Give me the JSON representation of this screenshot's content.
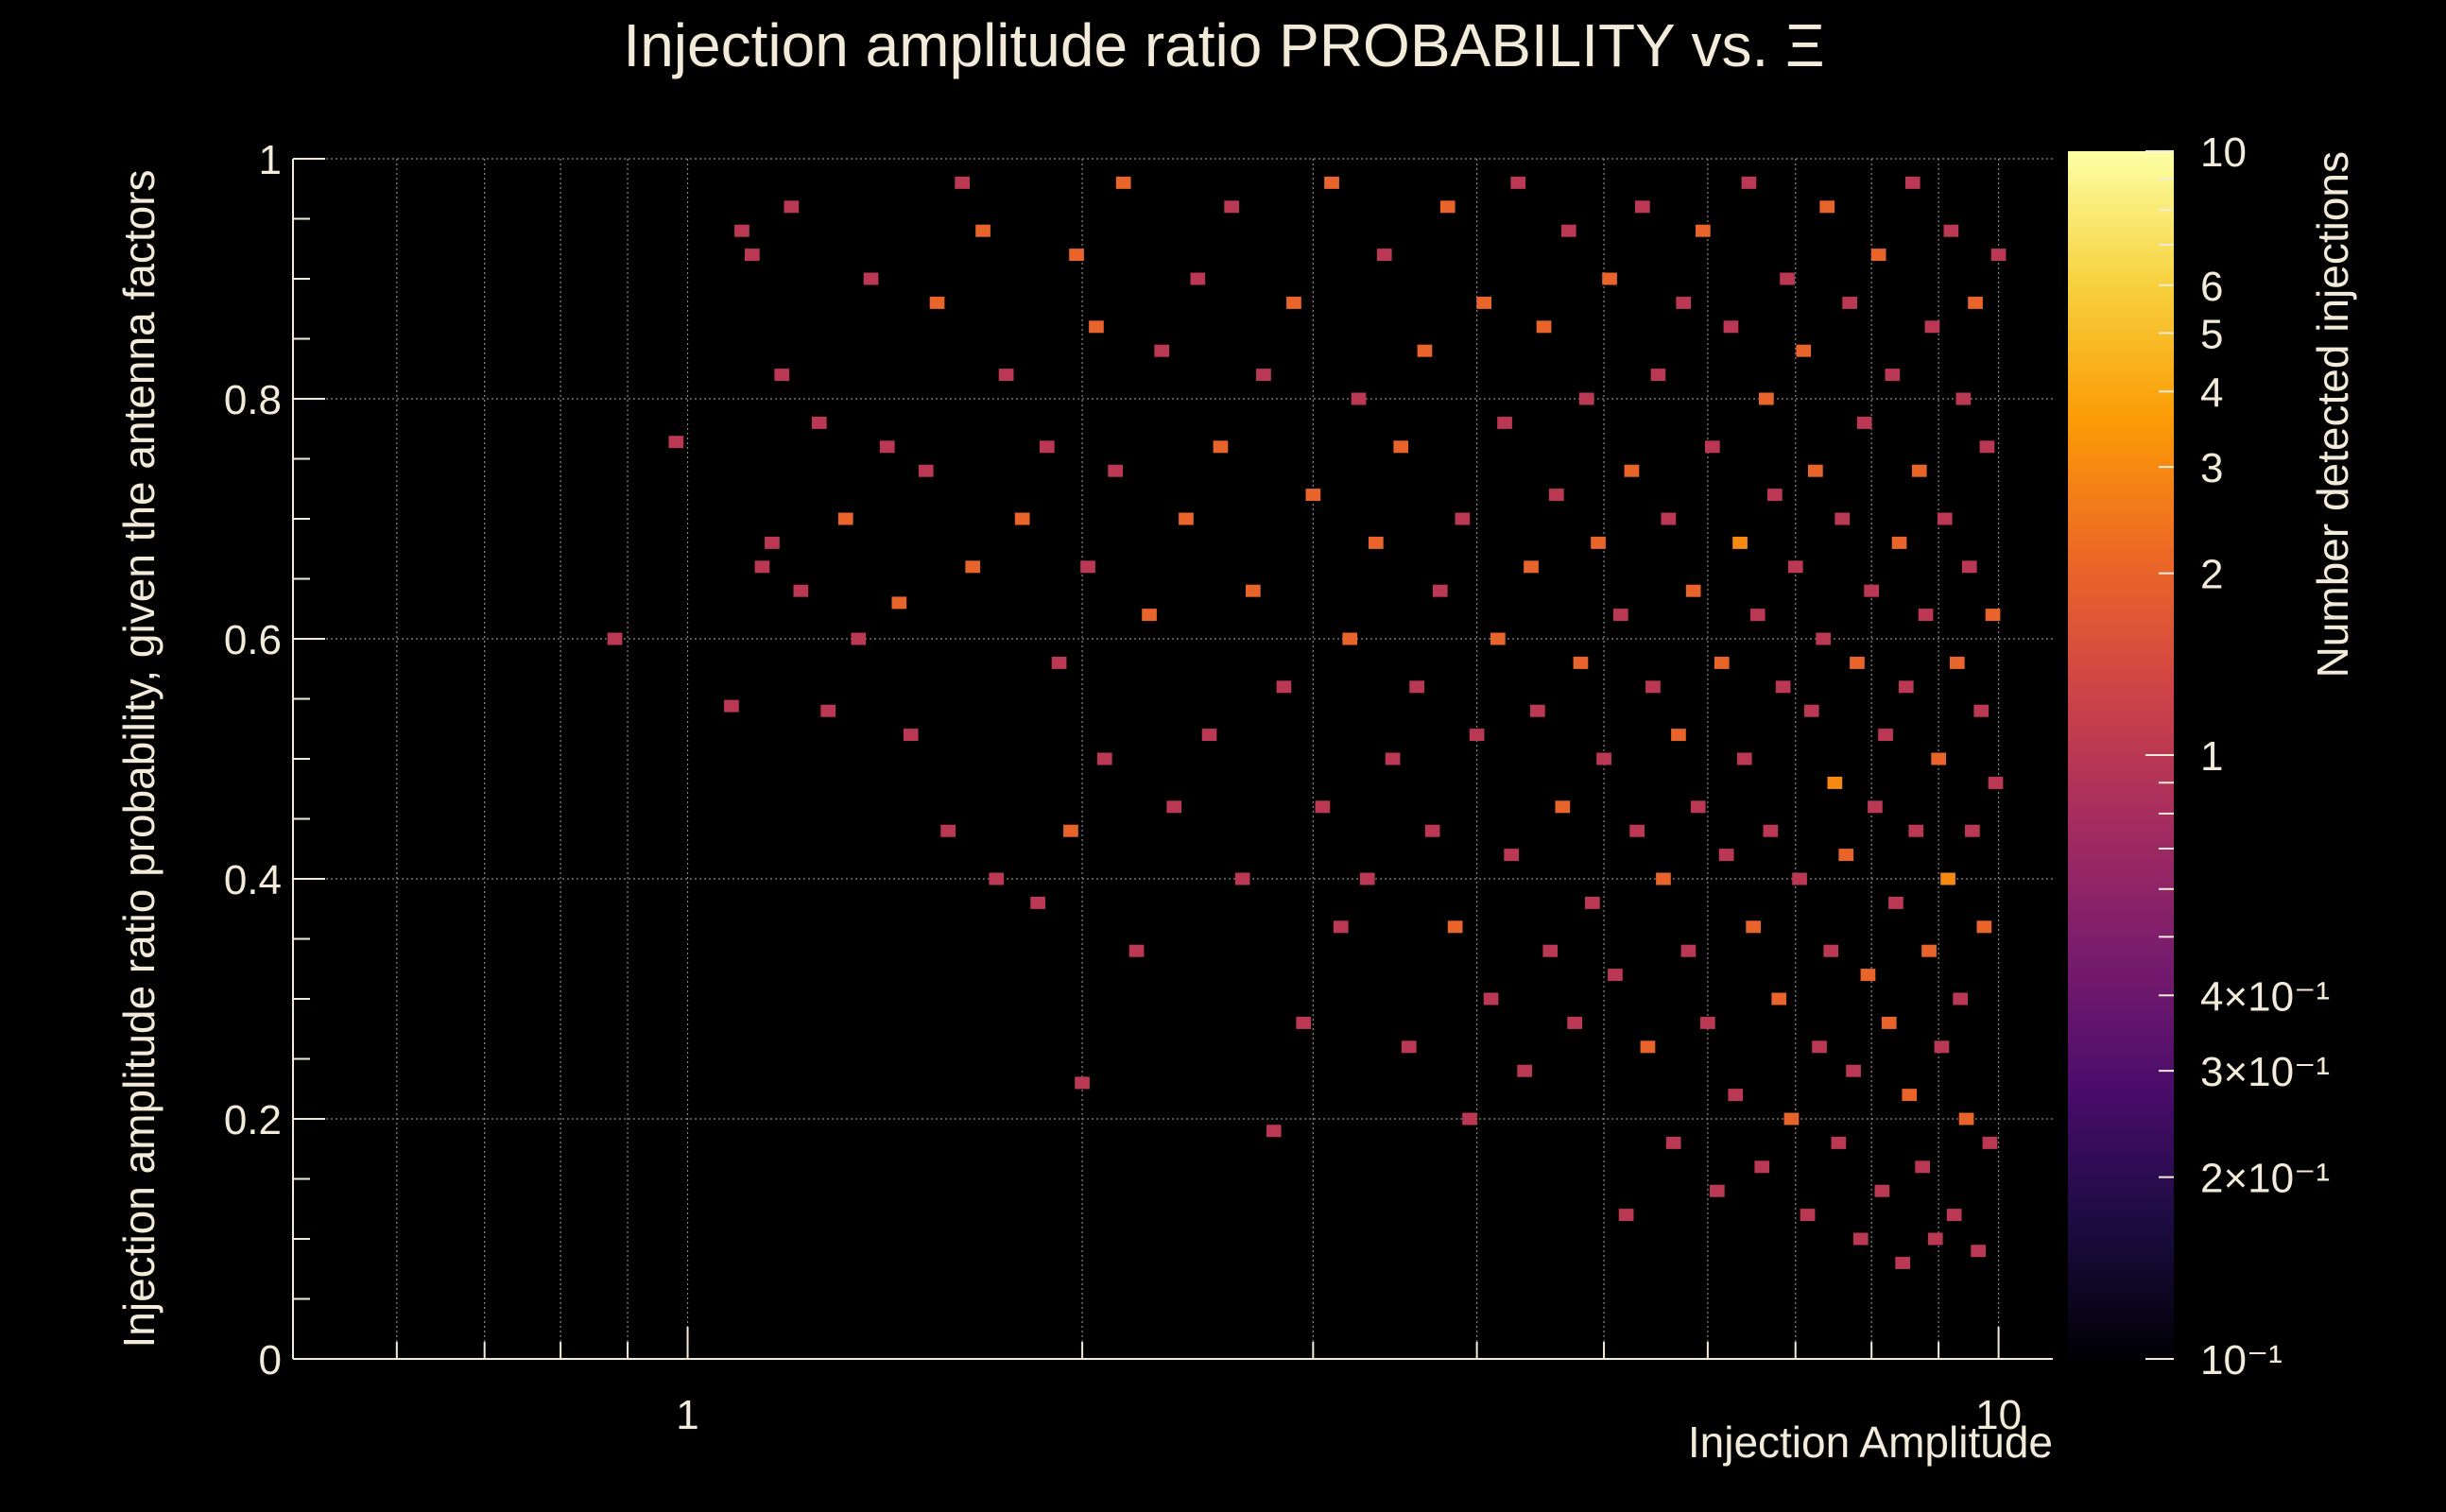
{
  "chart_data": {
    "type": "heatmap",
    "title": "Injection amplitude ratio PROBABILITY vs.  Ξ",
    "xlabel": "Injection Amplitude",
    "ylabel": "Injection amplitude ratio probability, given the antenna factors",
    "colorbar_label": "Number detected injections",
    "x_scale": "log",
    "xlim": [
      0.5,
      11
    ],
    "ylim": [
      0,
      1
    ],
    "x_tick_labels": [
      "1",
      "10"
    ],
    "x_tick_values": [
      1,
      10
    ],
    "y_tick_labels": [
      "0",
      "0.2",
      "0.4",
      "0.6",
      "0.8",
      "1"
    ],
    "y_tick_values": [
      0,
      0.2,
      0.4,
      0.6,
      0.8,
      1
    ],
    "colorbar_scale": "log",
    "colorbar_range": [
      0.1,
      10
    ],
    "colorbar_tick_labels": [
      "10",
      "6",
      "5",
      "4",
      "3",
      "2",
      "1",
      "4×10⁻¹",
      "3×10⁻¹",
      "2×10⁻¹",
      "10⁻¹"
    ],
    "colorbar_tick_values": [
      10,
      6,
      5,
      4,
      3,
      2,
      1,
      0.4,
      0.3,
      0.2,
      0.1
    ],
    "grid": true,
    "colormap": [
      "#000004",
      "#1b0c41",
      "#4a0c6b",
      "#781c6d",
      "#a52c60",
      "#cf4446",
      "#ed6925",
      "#fb9b06",
      "#f7d13d",
      "#fcffa4"
    ],
    "cells": [
      [
        0.88,
        0.6,
        1
      ],
      [
        0.98,
        0.764,
        1
      ],
      [
        1.08,
        0.544,
        1
      ],
      [
        1.1,
        0.94,
        1
      ],
      [
        1.12,
        0.92,
        1
      ],
      [
        1.14,
        0.66,
        1
      ],
      [
        1.16,
        0.68,
        1
      ],
      [
        1.18,
        0.82,
        1
      ],
      [
        1.2,
        0.96,
        1
      ],
      [
        1.22,
        0.64,
        1
      ],
      [
        1.26,
        0.78,
        1
      ],
      [
        1.28,
        0.54,
        1
      ],
      [
        1.32,
        0.7,
        2
      ],
      [
        1.35,
        0.6,
        1
      ],
      [
        1.38,
        0.9,
        1
      ],
      [
        1.42,
        0.76,
        1
      ],
      [
        1.45,
        0.63,
        2
      ],
      [
        1.48,
        0.52,
        1
      ],
      [
        1.52,
        0.74,
        1
      ],
      [
        1.55,
        0.88,
        2
      ],
      [
        1.58,
        0.44,
        1
      ],
      [
        1.62,
        0.98,
        1
      ],
      [
        1.65,
        0.66,
        2
      ],
      [
        1.68,
        0.94,
        2
      ],
      [
        1.72,
        0.4,
        1
      ],
      [
        1.75,
        0.82,
        1
      ],
      [
        1.8,
        0.7,
        2
      ],
      [
        1.85,
        0.38,
        1
      ],
      [
        1.88,
        0.76,
        1
      ],
      [
        1.92,
        0.58,
        1
      ],
      [
        1.96,
        0.44,
        2
      ],
      [
        1.98,
        0.92,
        2
      ],
      [
        2.0,
        0.23,
        1
      ],
      [
        2.02,
        0.66,
        1
      ],
      [
        2.05,
        0.86,
        2
      ],
      [
        2.08,
        0.5,
        1
      ],
      [
        2.12,
        0.74,
        1
      ],
      [
        2.15,
        0.98,
        2
      ],
      [
        2.2,
        0.34,
        1
      ],
      [
        2.25,
        0.62,
        2
      ],
      [
        2.3,
        0.84,
        1
      ],
      [
        2.35,
        0.46,
        1
      ],
      [
        2.4,
        0.7,
        2
      ],
      [
        2.45,
        0.9,
        1
      ],
      [
        2.5,
        0.52,
        1
      ],
      [
        2.55,
        0.76,
        2
      ],
      [
        2.6,
        0.96,
        1
      ],
      [
        2.65,
        0.4,
        1
      ],
      [
        2.7,
        0.64,
        2
      ],
      [
        2.75,
        0.82,
        1
      ],
      [
        2.8,
        0.19,
        1
      ],
      [
        2.85,
        0.56,
        1
      ],
      [
        2.9,
        0.88,
        2
      ],
      [
        2.95,
        0.28,
        1
      ],
      [
        3.0,
        0.72,
        2
      ],
      [
        3.05,
        0.46,
        1
      ],
      [
        3.1,
        0.98,
        2
      ],
      [
        3.15,
        0.36,
        1
      ],
      [
        3.2,
        0.6,
        2
      ],
      [
        3.25,
        0.8,
        1
      ],
      [
        3.3,
        0.4,
        1
      ],
      [
        3.35,
        0.68,
        2
      ],
      [
        3.4,
        0.92,
        1
      ],
      [
        3.45,
        0.5,
        1
      ],
      [
        3.5,
        0.76,
        2
      ],
      [
        3.55,
        0.26,
        1
      ],
      [
        3.6,
        0.56,
        1
      ],
      [
        3.65,
        0.84,
        2
      ],
      [
        3.7,
        0.44,
        1
      ],
      [
        3.75,
        0.64,
        1
      ],
      [
        3.8,
        0.96,
        2
      ],
      [
        3.85,
        0.36,
        2
      ],
      [
        3.9,
        0.7,
        1
      ],
      [
        3.95,
        0.2,
        1
      ],
      [
        4.0,
        0.52,
        1
      ],
      [
        4.05,
        0.88,
        2
      ],
      [
        4.1,
        0.3,
        1
      ],
      [
        4.15,
        0.6,
        2
      ],
      [
        4.2,
        0.78,
        1
      ],
      [
        4.25,
        0.42,
        1
      ],
      [
        4.3,
        0.98,
        1
      ],
      [
        4.35,
        0.24,
        1
      ],
      [
        4.4,
        0.66,
        2
      ],
      [
        4.45,
        0.54,
        1
      ],
      [
        4.5,
        0.86,
        2
      ],
      [
        4.55,
        0.34,
        1
      ],
      [
        4.6,
        0.72,
        1
      ],
      [
        4.65,
        0.46,
        2
      ],
      [
        4.7,
        0.94,
        1
      ],
      [
        4.75,
        0.28,
        1
      ],
      [
        4.8,
        0.58,
        2
      ],
      [
        4.85,
        0.8,
        1
      ],
      [
        4.9,
        0.38,
        1
      ],
      [
        4.95,
        0.68,
        2
      ],
      [
        5.0,
        0.5,
        1
      ],
      [
        5.05,
        0.9,
        2
      ],
      [
        5.1,
        0.32,
        1
      ],
      [
        5.15,
        0.62,
        1
      ],
      [
        5.2,
        0.12,
        1
      ],
      [
        5.25,
        0.74,
        2
      ],
      [
        5.3,
        0.44,
        1
      ],
      [
        5.35,
        0.96,
        1
      ],
      [
        5.4,
        0.26,
        2
      ],
      [
        5.45,
        0.56,
        1
      ],
      [
        5.5,
        0.82,
        1
      ],
      [
        5.55,
        0.4,
        2
      ],
      [
        5.6,
        0.7,
        1
      ],
      [
        5.65,
        0.18,
        1
      ],
      [
        5.7,
        0.52,
        2
      ],
      [
        5.75,
        0.88,
        1
      ],
      [
        5.8,
        0.34,
        1
      ],
      [
        5.85,
        0.64,
        2
      ],
      [
        5.9,
        0.46,
        1
      ],
      [
        5.95,
        0.94,
        2
      ],
      [
        6.0,
        0.28,
        1
      ],
      [
        6.05,
        0.76,
        1
      ],
      [
        6.1,
        0.14,
        1
      ],
      [
        6.15,
        0.58,
        2
      ],
      [
        6.2,
        0.42,
        1
      ],
      [
        6.25,
        0.86,
        1
      ],
      [
        6.3,
        0.22,
        1
      ],
      [
        6.35,
        0.68,
        3
      ],
      [
        6.4,
        0.5,
        1
      ],
      [
        6.45,
        0.98,
        1
      ],
      [
        6.5,
        0.36,
        2
      ],
      [
        6.55,
        0.62,
        1
      ],
      [
        6.6,
        0.16,
        1
      ],
      [
        6.65,
        0.8,
        2
      ],
      [
        6.7,
        0.44,
        1
      ],
      [
        6.75,
        0.72,
        1
      ],
      [
        6.8,
        0.3,
        2
      ],
      [
        6.85,
        0.56,
        1
      ],
      [
        6.9,
        0.9,
        1
      ],
      [
        6.95,
        0.2,
        2
      ],
      [
        7.0,
        0.66,
        1
      ],
      [
        7.05,
        0.4,
        1
      ],
      [
        7.1,
        0.84,
        2
      ],
      [
        7.15,
        0.12,
        1
      ],
      [
        7.2,
        0.54,
        1
      ],
      [
        7.25,
        0.74,
        2
      ],
      [
        7.3,
        0.26,
        1
      ],
      [
        7.35,
        0.6,
        1
      ],
      [
        7.4,
        0.96,
        2
      ],
      [
        7.45,
        0.34,
        1
      ],
      [
        7.5,
        0.48,
        3
      ],
      [
        7.55,
        0.18,
        1
      ],
      [
        7.6,
        0.7,
        1
      ],
      [
        7.65,
        0.42,
        2
      ],
      [
        7.7,
        0.88,
        1
      ],
      [
        7.75,
        0.24,
        1
      ],
      [
        7.8,
        0.58,
        2
      ],
      [
        7.85,
        0.1,
        1
      ],
      [
        7.9,
        0.78,
        1
      ],
      [
        7.95,
        0.32,
        2
      ],
      [
        8.0,
        0.64,
        1
      ],
      [
        8.05,
        0.46,
        1
      ],
      [
        8.1,
        0.92,
        2
      ],
      [
        8.15,
        0.14,
        1
      ],
      [
        8.2,
        0.52,
        1
      ],
      [
        8.25,
        0.28,
        2
      ],
      [
        8.3,
        0.82,
        1
      ],
      [
        8.35,
        0.38,
        1
      ],
      [
        8.4,
        0.68,
        2
      ],
      [
        8.45,
        0.08,
        1
      ],
      [
        8.5,
        0.56,
        1
      ],
      [
        8.55,
        0.22,
        2
      ],
      [
        8.6,
        0.98,
        1
      ],
      [
        8.65,
        0.44,
        1
      ],
      [
        8.7,
        0.74,
        2
      ],
      [
        8.75,
        0.16,
        1
      ],
      [
        8.8,
        0.62,
        1
      ],
      [
        8.85,
        0.34,
        2
      ],
      [
        8.9,
        0.86,
        1
      ],
      [
        8.95,
        0.1,
        1
      ],
      [
        9.0,
        0.5,
        2
      ],
      [
        9.05,
        0.26,
        1
      ],
      [
        9.1,
        0.7,
        1
      ],
      [
        9.15,
        0.4,
        3
      ],
      [
        9.2,
        0.94,
        1
      ],
      [
        9.25,
        0.12,
        1
      ],
      [
        9.3,
        0.58,
        2
      ],
      [
        9.35,
        0.3,
        1
      ],
      [
        9.4,
        0.8,
        1
      ],
      [
        9.45,
        0.2,
        2
      ],
      [
        9.5,
        0.66,
        1
      ],
      [
        9.55,
        0.44,
        1
      ],
      [
        9.6,
        0.88,
        2
      ],
      [
        9.65,
        0.09,
        1
      ],
      [
        9.7,
        0.54,
        1
      ],
      [
        9.75,
        0.36,
        2
      ],
      [
        9.8,
        0.76,
        1
      ],
      [
        9.85,
        0.18,
        1
      ],
      [
        9.9,
        0.62,
        2
      ],
      [
        9.95,
        0.48,
        1
      ],
      [
        10.0,
        0.92,
        1
      ]
    ]
  }
}
